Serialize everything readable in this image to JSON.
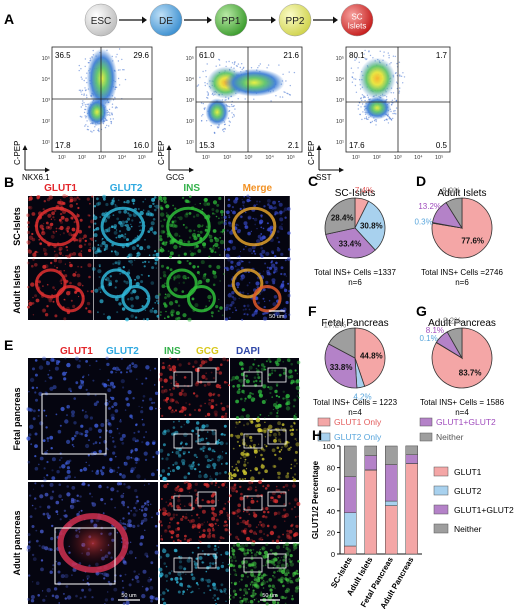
{
  "colors": {
    "esc": "#d9d9d9",
    "de": "#5aa7e0",
    "pp1": "#58b947",
    "pp2": "#e6ea73",
    "sc": "#e0312f",
    "glut1": "#f4a6a6",
    "glut2": "#a8d1ee",
    "both": "#b482c8",
    "neither": "#9e9e9e",
    "red_label": "#e3262b",
    "blue_label": "#2fa9e0",
    "green_label": "#33b14a",
    "orange_label": "#f29123",
    "purple_label": "#9b3fb0",
    "yellow_label": "#d8c81c",
    "navy_label": "#3048a8"
  },
  "panels": {
    "A": "A",
    "B": "B",
    "C": "C",
    "D": "D",
    "E": "E",
    "F": "F",
    "G": "G",
    "H": "H"
  },
  "stages": [
    "ESC",
    "DE",
    "PP1",
    "PP2",
    "SC\nIslets"
  ],
  "flow": [
    {
      "ylabel": "C-PEP",
      "xlabel": "NKX6.1",
      "q": [
        "36.5",
        "29.6",
        "17.8",
        "16.0"
      ]
    },
    {
      "ylabel": "C-PEP",
      "xlabel": "GCG",
      "q": [
        "61.0",
        "21.6",
        "15.3",
        "2.1"
      ]
    },
    {
      "ylabel": "C-PEP",
      "xlabel": "SST",
      "q": [
        "80.1",
        "1.7",
        "17.6",
        "0.5"
      ]
    }
  ],
  "axis_ticks": [
    "10¹",
    "10²",
    "10³",
    "10⁴",
    "10⁵"
  ],
  "B": {
    "headers": [
      "GLUT1",
      "GLUT2",
      "INS",
      "Merge"
    ],
    "rows": [
      "SC-Islets",
      "Adult Islets"
    ],
    "scale": "50 um"
  },
  "E": {
    "headers": [
      "GLUT1",
      "GLUT2",
      "INS",
      "GCG",
      "DAPI"
    ],
    "rows": [
      "Fetal pancreas",
      "Adult pancreas"
    ],
    "scale": "50 um"
  },
  "chart_data": [
    {
      "type": "pie",
      "title": "SC-Islets",
      "labels": [
        "GLUT1 Only",
        "GLUT2 Only",
        "GLUT1+GLUT2",
        "Neither"
      ],
      "values": [
        7.4,
        30.8,
        33.4,
        28.4
      ],
      "value_labels": [
        "7.4%",
        "30.8%",
        "33.4%",
        "28.4%"
      ],
      "total": "Total INS+ Cells =1337",
      "n": "n=6"
    },
    {
      "type": "pie",
      "title": "Adult Islets",
      "labels": [
        "GLUT1 Only",
        "GLUT2 Only",
        "GLUT1+GLUT2",
        "Neither"
      ],
      "values": [
        77.6,
        0.3,
        13.2,
        8.9
      ],
      "value_labels": [
        "77.6%",
        "0.3%",
        "13.2%",
        "8.9%"
      ],
      "total": "Total INS+ Cells =2746",
      "n": "n=6"
    },
    {
      "type": "pie",
      "title": "Fetal Pancreas",
      "labels": [
        "GLUT1 Only",
        "GLUT2 Only",
        "GLUT1+GLUT2",
        "Neither"
      ],
      "values": [
        44.8,
        4.2,
        33.8,
        17.2
      ],
      "value_labels": [
        "44.8%",
        "4.2%",
        "33.8%",
        "17.2%"
      ],
      "total": "Total INS+ Cells = 1223",
      "n": "n=4"
    },
    {
      "type": "pie",
      "title": "Adult Pancreas",
      "labels": [
        "GLUT1 Only",
        "GLUT2 Only",
        "GLUT1+GLUT2",
        "Neither"
      ],
      "values": [
        83.7,
        0.1,
        8.1,
        8.2
      ],
      "value_labels": [
        "83.7%",
        "0.1%",
        "8.1%",
        "8.2%"
      ],
      "total": "Total INS+ Cells = 1586",
      "n": "n=4"
    },
    {
      "type": "bar",
      "stacked": true,
      "categories": [
        "SC-Islets",
        "Adult Islets",
        "Fetal Pancreas",
        "Adult Pancreas"
      ],
      "series": [
        {
          "name": "GLUT1",
          "values": [
            7.4,
            77.6,
            44.8,
            83.7
          ]
        },
        {
          "name": "GLUT2",
          "values": [
            30.8,
            0.3,
            4.2,
            0.1
          ]
        },
        {
          "name": "GLUT1+GLUT2",
          "values": [
            33.4,
            13.2,
            33.8,
            8.1
          ]
        },
        {
          "name": "Neither",
          "values": [
            28.4,
            8.9,
            17.2,
            8.2
          ]
        }
      ],
      "ylabel": "GLUT1/2 Percentage",
      "ylim": [
        0,
        100
      ],
      "yticks": [
        "0",
        "20",
        "40",
        "60",
        "80",
        "100"
      ]
    }
  ],
  "legend": [
    "GLUT1 Only",
    "GLUT2 Only",
    "GLUT1+GLUT2",
    "Neither"
  ]
}
